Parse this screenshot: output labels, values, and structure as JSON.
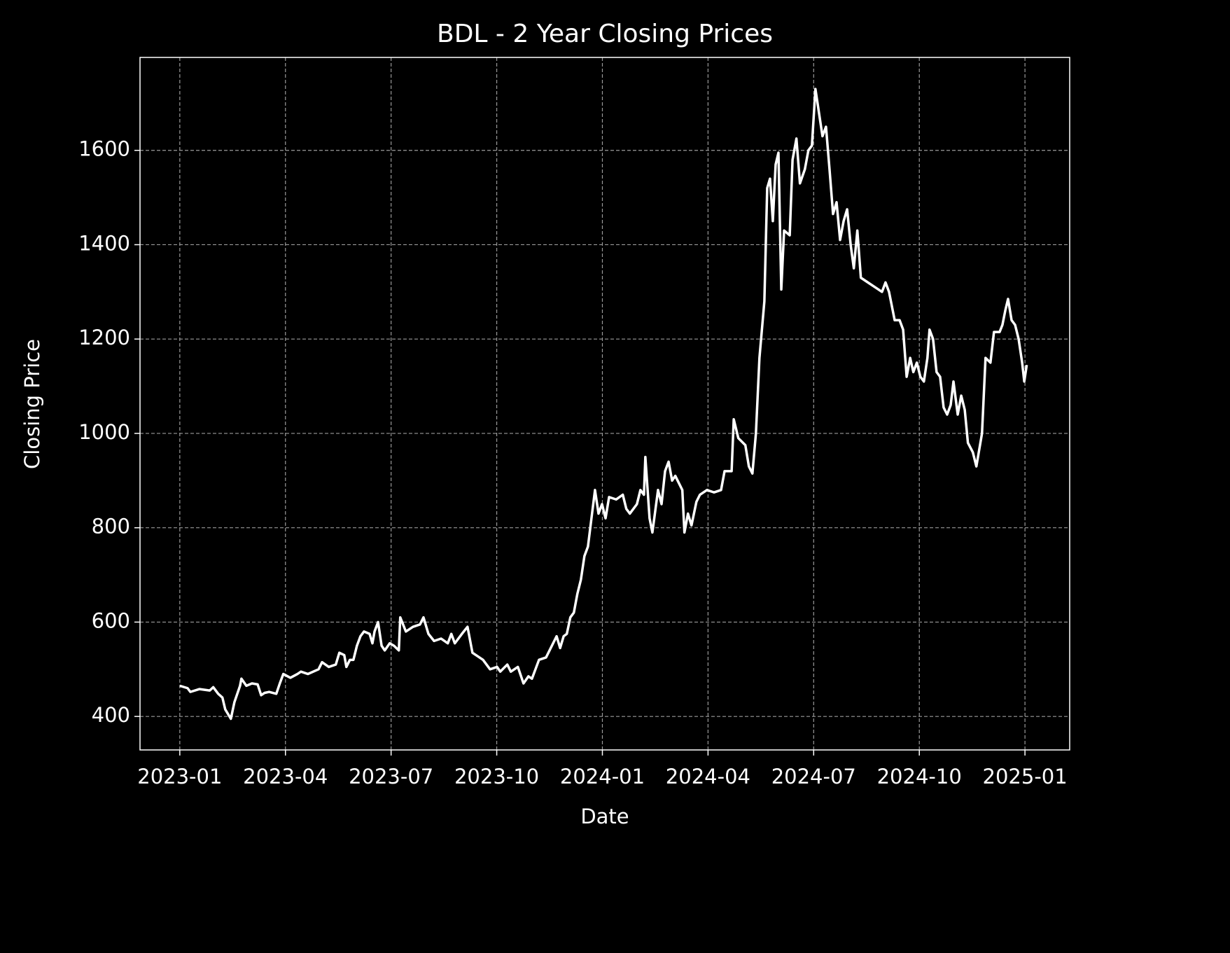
{
  "chart_data": {
    "type": "line",
    "title": "BDL - 2 Year Closing Prices",
    "x_label": "Date",
    "y_label": "Closing Price",
    "grid": true,
    "xlim": [
      -1.13,
      25.27
    ],
    "xticks": [
      {
        "value": 0,
        "label": "2023-01"
      },
      {
        "value": 3,
        "label": "2023-04"
      },
      {
        "value": 6,
        "label": "2023-07"
      },
      {
        "value": 9,
        "label": "2023-10"
      },
      {
        "value": 12,
        "label": "2024-01"
      },
      {
        "value": 15,
        "label": "2024-04"
      },
      {
        "value": 18,
        "label": "2024-07"
      },
      {
        "value": 21,
        "label": "2024-10"
      },
      {
        "value": 24,
        "label": "2025-01"
      }
    ],
    "ylim": [
      329,
      1797
    ],
    "yticks": [
      400,
      600,
      800,
      1000,
      1200,
      1400,
      1600
    ],
    "series": [
      {
        "color": "#ffffff",
        "x": [
          0,
          0.22,
          0.3,
          0.56,
          0.85,
          0.95,
          1.09,
          1.21,
          1.29,
          1.45,
          1.55,
          1.71,
          1.75,
          1.89,
          2.05,
          2.21,
          2.31,
          2.41,
          2.54,
          2.74,
          2.84,
          2.94,
          3.14,
          3.34,
          3.44,
          3.64,
          3.94,
          4.04,
          4.23,
          4.43,
          4.53,
          4.67,
          4.73,
          4.83,
          4.93,
          5.03,
          5.13,
          5.23,
          5.39,
          5.47,
          5.53,
          5.63,
          5.73,
          5.82,
          5.96,
          6.08,
          6.22,
          6.26,
          6.42,
          6.62,
          6.82,
          6.92,
          7.06,
          7.22,
          7.42,
          7.61,
          7.71,
          7.81,
          8.01,
          8.17,
          8.31,
          8.61,
          8.81,
          9.01,
          9.1,
          9.3,
          9.4,
          9.6,
          9.76,
          9.9,
          10.0,
          10.1,
          10.2,
          10.4,
          10.6,
          10.7,
          10.8,
          10.9,
          10.99,
          11.09,
          11.19,
          11.29,
          11.39,
          11.49,
          11.59,
          11.69,
          11.79,
          11.89,
          11.99,
          12.09,
          12.19,
          12.39,
          12.58,
          12.68,
          12.78,
          12.98,
          13.08,
          13.18,
          13.22,
          13.34,
          13.42,
          13.58,
          13.68,
          13.78,
          13.88,
          13.98,
          14.07,
          14.17,
          14.27,
          14.33,
          14.43,
          14.53,
          14.67,
          14.77,
          14.97,
          15.17,
          15.37,
          15.47,
          15.67,
          15.73,
          15.86,
          16.06,
          16.16,
          16.26,
          16.36,
          16.46,
          16.6,
          16.68,
          16.76,
          16.84,
          16.92,
          17.0,
          17.08,
          17.16,
          17.32,
          17.4,
          17.51,
          17.61,
          17.75,
          17.85,
          17.95,
          18.05,
          18.15,
          18.25,
          18.35,
          18.45,
          18.55,
          18.65,
          18.75,
          18.85,
          18.95,
          19.05,
          19.14,
          19.24,
          19.34,
          19.54,
          19.74,
          19.94,
          20.04,
          20.14,
          20.3,
          20.44,
          20.54,
          20.64,
          20.74,
          20.83,
          20.93,
          21.03,
          21.13,
          21.23,
          21.29,
          21.39,
          21.49,
          21.59,
          21.69,
          21.79,
          21.89,
          21.97,
          22.09,
          22.19,
          22.29,
          22.38,
          22.52,
          22.62,
          22.78,
          22.88,
          23.02,
          23.12,
          23.28,
          23.36,
          23.44,
          23.52,
          23.62,
          23.72,
          23.82,
          23.92,
          23.98,
          24.05
        ],
        "values": [
          465,
          460,
          452,
          458,
          455,
          462,
          448,
          440,
          415,
          395,
          430,
          465,
          480,
          465,
          470,
          468,
          445,
          450,
          452,
          448,
          470,
          490,
          482,
          490,
          495,
          490,
          500,
          515,
          505,
          510,
          535,
          530,
          505,
          520,
          520,
          550,
          570,
          580,
          575,
          555,
          580,
          600,
          550,
          540,
          555,
          550,
          540,
          610,
          580,
          590,
          595,
          610,
          575,
          560,
          565,
          555,
          575,
          555,
          575,
          590,
          535,
          520,
          500,
          505,
          495,
          510,
          495,
          505,
          470,
          485,
          480,
          500,
          520,
          525,
          555,
          570,
          545,
          570,
          575,
          610,
          620,
          660,
          690,
          740,
          760,
          820,
          880,
          830,
          850,
          820,
          865,
          860,
          870,
          840,
          830,
          850,
          880,
          870,
          950,
          820,
          790,
          880,
          850,
          920,
          940,
          900,
          910,
          895,
          880,
          790,
          830,
          805,
          855,
          870,
          880,
          875,
          880,
          920,
          920,
          1030,
          990,
          975,
          930,
          915,
          1000,
          1160,
          1280,
          1520,
          1540,
          1450,
          1570,
          1595,
          1305,
          1430,
          1420,
          1580,
          1625,
          1530,
          1560,
          1600,
          1610,
          1730,
          1680,
          1630,
          1650,
          1560,
          1465,
          1490,
          1410,
          1450,
          1475,
          1400,
          1350,
          1430,
          1330,
          1320,
          1310,
          1300,
          1320,
          1300,
          1240,
          1240,
          1220,
          1120,
          1160,
          1130,
          1150,
          1120,
          1110,
          1160,
          1220,
          1200,
          1130,
          1120,
          1055,
          1040,
          1060,
          1110,
          1040,
          1080,
          1050,
          980,
          960,
          930,
          1000,
          1160,
          1150,
          1215,
          1215,
          1230,
          1260,
          1285,
          1240,
          1230,
          1200,
          1150,
          1110,
          1145
        ]
      }
    ]
  }
}
